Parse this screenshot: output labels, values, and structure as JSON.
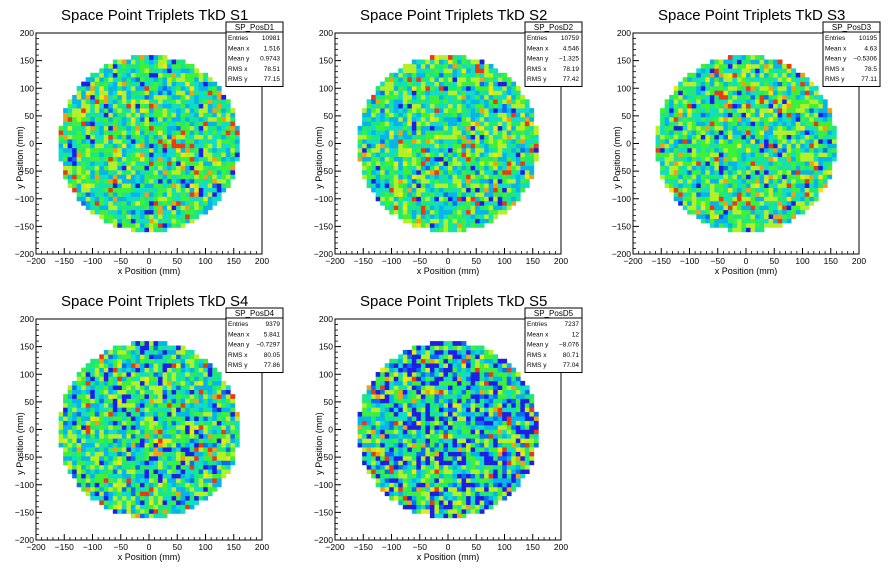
{
  "chart_data": [
    {
      "type": "heatmap",
      "title": "Space Point Triplets TkD S1",
      "xlabel": "x Position (mm)",
      "ylabel": "y Position (mm)",
      "xlim": [
        -200,
        200
      ],
      "ylim": [
        -200,
        200
      ],
      "xticks": [
        "−200",
        "−150",
        "−100",
        "−50",
        "0",
        "50",
        "100",
        "150",
        "200"
      ],
      "yticks": [
        "−200",
        "−150",
        "−100",
        "−50",
        "0",
        "50",
        "100",
        "150",
        "200"
      ],
      "disk_radius_mm": 160,
      "stats": {
        "name": "SP_PosD1",
        "rows": [
          {
            "label": "Entries",
            "value": "10981"
          },
          {
            "label": "Mean x",
            "value": "1.516"
          },
          {
            "label": "Mean y",
            "value": "0.9743"
          },
          {
            "label": "RMS x",
            "value": "78.51"
          },
          {
            "label": "RMS y",
            "value": "77.15"
          }
        ]
      }
    },
    {
      "type": "heatmap",
      "title": "Space Point Triplets TkD S2",
      "xlabel": "x Position (mm)",
      "ylabel": "y Position (mm)",
      "xlim": [
        -200,
        200
      ],
      "ylim": [
        -200,
        200
      ],
      "xticks": [
        "−200",
        "−150",
        "−100",
        "−50",
        "0",
        "50",
        "100",
        "150",
        "200"
      ],
      "yticks": [
        "−200",
        "−150",
        "−100",
        "−50",
        "0",
        "50",
        "100",
        "150",
        "200"
      ],
      "disk_radius_mm": 160,
      "stats": {
        "name": "SP_PosD2",
        "rows": [
          {
            "label": "Entries",
            "value": "10759"
          },
          {
            "label": "Mean x",
            "value": "4.546"
          },
          {
            "label": "Mean y",
            "value": "−1.325"
          },
          {
            "label": "RMS x",
            "value": "78.19"
          },
          {
            "label": "RMS y",
            "value": "77.42"
          }
        ]
      }
    },
    {
      "type": "heatmap",
      "title": "Space Point Triplets TkD S3",
      "xlabel": "x Position (mm)",
      "ylabel": "y Position (mm)",
      "xlim": [
        -200,
        200
      ],
      "ylim": [
        -200,
        200
      ],
      "xticks": [
        "−200",
        "−150",
        "−100",
        "−50",
        "0",
        "50",
        "100",
        "150",
        "200"
      ],
      "yticks": [
        "−200",
        "−150",
        "−100",
        "−50",
        "0",
        "50",
        "100",
        "150",
        "200"
      ],
      "disk_radius_mm": 160,
      "stats": {
        "name": "SP_PosD3",
        "rows": [
          {
            "label": "Entries",
            "value": "10195"
          },
          {
            "label": "Mean x",
            "value": "4.63"
          },
          {
            "label": "Mean y",
            "value": "−0.5306"
          },
          {
            "label": "RMS x",
            "value": "78.5"
          },
          {
            "label": "RMS y",
            "value": "77.11"
          }
        ]
      }
    },
    {
      "type": "heatmap",
      "title": "Space Point Triplets TkD S4",
      "xlabel": "x Position (mm)",
      "ylabel": "y Position (mm)",
      "xlim": [
        -200,
        200
      ],
      "ylim": [
        -200,
        200
      ],
      "xticks": [
        "−200",
        "−150",
        "−100",
        "−50",
        "0",
        "50",
        "100",
        "150",
        "200"
      ],
      "yticks": [
        "−200",
        "−150",
        "−100",
        "−50",
        "0",
        "50",
        "100",
        "150",
        "200"
      ],
      "disk_radius_mm": 160,
      "stats": {
        "name": "SP_PosD4",
        "rows": [
          {
            "label": "Entries",
            "value": "9379"
          },
          {
            "label": "Mean x",
            "value": "5.841"
          },
          {
            "label": "Mean y",
            "value": "−0.7297"
          },
          {
            "label": "RMS x",
            "value": "80.05"
          },
          {
            "label": "RMS y",
            "value": "77.86"
          }
        ]
      }
    },
    {
      "type": "heatmap",
      "title": "Space Point Triplets TkD S5",
      "xlabel": "x Position (mm)",
      "ylabel": "y Position (mm)",
      "xlim": [
        -200,
        200
      ],
      "ylim": [
        -200,
        200
      ],
      "xticks": [
        "−200",
        "−150",
        "−100",
        "−50",
        "0",
        "50",
        "100",
        "150",
        "200"
      ],
      "yticks": [
        "−200",
        "−150",
        "−100",
        "−50",
        "0",
        "50",
        "100",
        "150",
        "200"
      ],
      "disk_radius_mm": 160,
      "stats": {
        "name": "SP_PosD5",
        "rows": [
          {
            "label": "Entries",
            "value": "7237"
          },
          {
            "label": "Mean x",
            "value": "12"
          },
          {
            "label": "Mean y",
            "value": "−8.076"
          },
          {
            "label": "RMS x",
            "value": "80.71"
          },
          {
            "label": "RMS y",
            "value": "77.04"
          }
        ]
      }
    }
  ]
}
